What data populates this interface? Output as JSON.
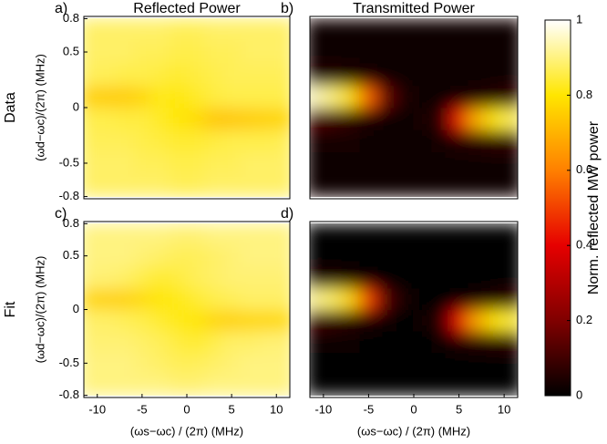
{
  "chart_data": [
    {
      "type": "heatmap",
      "label": "a)",
      "title": "Reflected Power",
      "row_label": "Data",
      "ylabel": "(ωd−ωc)/(2π) (MHz)",
      "x": [
        -11,
        -9,
        -7,
        -5,
        -3,
        -1,
        1,
        3,
        5,
        7,
        9,
        11
      ],
      "y": [
        -0.7,
        -0.5,
        -0.3,
        -0.1,
        0.1,
        0.3,
        0.5,
        0.7
      ],
      "z": [
        [
          0.88,
          0.88,
          0.88,
          0.88,
          0.88,
          0.87,
          0.87,
          0.88,
          0.88,
          0.88,
          0.88,
          0.88
        ],
        [
          0.88,
          0.88,
          0.88,
          0.87,
          0.87,
          0.86,
          0.86,
          0.87,
          0.87,
          0.88,
          0.88,
          0.88
        ],
        [
          0.87,
          0.87,
          0.87,
          0.86,
          0.85,
          0.84,
          0.84,
          0.85,
          0.86,
          0.86,
          0.86,
          0.87
        ],
        [
          0.86,
          0.86,
          0.85,
          0.85,
          0.83,
          0.8,
          0.78,
          0.74,
          0.74,
          0.75,
          0.76,
          0.77
        ],
        [
          0.76,
          0.75,
          0.75,
          0.77,
          0.82,
          0.81,
          0.83,
          0.85,
          0.86,
          0.86,
          0.86,
          0.86
        ],
        [
          0.87,
          0.87,
          0.86,
          0.86,
          0.85,
          0.84,
          0.85,
          0.86,
          0.87,
          0.87,
          0.87,
          0.87
        ],
        [
          0.88,
          0.88,
          0.88,
          0.87,
          0.87,
          0.86,
          0.86,
          0.87,
          0.87,
          0.88,
          0.88,
          0.88
        ],
        [
          0.88,
          0.88,
          0.88,
          0.88,
          0.88,
          0.87,
          0.87,
          0.88,
          0.88,
          0.88,
          0.88,
          0.88
        ]
      ],
      "xlim": [
        -11.5,
        11.5
      ],
      "ylim": [
        -0.82,
        0.82
      ],
      "yticks": [
        0.8,
        0.5,
        0,
        -0.5,
        -0.8
      ]
    },
    {
      "type": "heatmap",
      "label": "b)",
      "title": "Transmitted Power",
      "x": [
        -11,
        -9,
        -7,
        -5,
        -3,
        -1,
        1,
        3,
        5,
        7,
        9,
        11
      ],
      "y": [
        -0.7,
        -0.5,
        -0.3,
        -0.1,
        0.1,
        0.3,
        0.5,
        0.7
      ],
      "z": [
        [
          0.02,
          0.02,
          0.02,
          0.02,
          0.02,
          0.02,
          0.02,
          0.02,
          0.02,
          0.02,
          0.02,
          0.02
        ],
        [
          0.02,
          0.02,
          0.02,
          0.02,
          0.02,
          0.02,
          0.02,
          0.02,
          0.02,
          0.02,
          0.02,
          0.02
        ],
        [
          0.03,
          0.03,
          0.03,
          0.02,
          0.02,
          0.02,
          0.02,
          0.03,
          0.05,
          0.06,
          0.07,
          0.08
        ],
        [
          0.12,
          0.1,
          0.07,
          0.04,
          0.02,
          0.02,
          0.03,
          0.08,
          0.45,
          0.7,
          0.82,
          0.88
        ],
        [
          0.95,
          0.9,
          0.78,
          0.55,
          0.15,
          0.04,
          0.02,
          0.02,
          0.03,
          0.04,
          0.06,
          0.08
        ],
        [
          0.06,
          0.05,
          0.04,
          0.03,
          0.02,
          0.02,
          0.02,
          0.02,
          0.02,
          0.02,
          0.02,
          0.02
        ],
        [
          0.02,
          0.02,
          0.02,
          0.02,
          0.02,
          0.02,
          0.02,
          0.02,
          0.02,
          0.02,
          0.02,
          0.02
        ],
        [
          0.02,
          0.02,
          0.02,
          0.02,
          0.02,
          0.02,
          0.02,
          0.02,
          0.02,
          0.02,
          0.02,
          0.02
        ]
      ],
      "xlim": [
        -11.5,
        11.5
      ],
      "ylim": [
        -0.82,
        0.82
      ]
    },
    {
      "type": "heatmap",
      "label": "c)",
      "row_label": "Fit",
      "ylabel": "(ωd−ωc)/(2π) (MHz)",
      "xlabel": "(ωs−ωc) / (2π) (MHz)",
      "x": [
        -11,
        -9,
        -7,
        -5,
        -3,
        -1,
        1,
        3,
        5,
        7,
        9,
        11
      ],
      "y": [
        -0.7,
        -0.5,
        -0.3,
        -0.1,
        0.1,
        0.3,
        0.5,
        0.7
      ],
      "z": [
        [
          0.9,
          0.9,
          0.9,
          0.9,
          0.9,
          0.89,
          0.89,
          0.9,
          0.9,
          0.9,
          0.9,
          0.9
        ],
        [
          0.9,
          0.9,
          0.9,
          0.89,
          0.88,
          0.87,
          0.87,
          0.88,
          0.89,
          0.9,
          0.9,
          0.9
        ],
        [
          0.89,
          0.89,
          0.89,
          0.88,
          0.87,
          0.85,
          0.84,
          0.86,
          0.88,
          0.88,
          0.89,
          0.89
        ],
        [
          0.88,
          0.88,
          0.87,
          0.86,
          0.84,
          0.82,
          0.8,
          0.77,
          0.76,
          0.77,
          0.77,
          0.78
        ],
        [
          0.77,
          0.76,
          0.76,
          0.78,
          0.8,
          0.82,
          0.84,
          0.86,
          0.87,
          0.88,
          0.88,
          0.88
        ],
        [
          0.89,
          0.89,
          0.88,
          0.86,
          0.84,
          0.85,
          0.87,
          0.88,
          0.89,
          0.89,
          0.89,
          0.89
        ],
        [
          0.9,
          0.9,
          0.9,
          0.89,
          0.88,
          0.87,
          0.87,
          0.88,
          0.89,
          0.9,
          0.9,
          0.9
        ],
        [
          0.9,
          0.9,
          0.9,
          0.9,
          0.9,
          0.89,
          0.89,
          0.9,
          0.9,
          0.9,
          0.9,
          0.9
        ]
      ],
      "xlim": [
        -11.5,
        11.5
      ],
      "ylim": [
        -0.82,
        0.82
      ],
      "xticks": [
        -10,
        -5,
        0,
        5,
        10
      ],
      "yticks": [
        0.8,
        0.5,
        0,
        -0.5,
        -0.8
      ]
    },
    {
      "type": "heatmap",
      "label": "d)",
      "xlabel": "(ωs−ωc) / (2π) (MHz)",
      "x": [
        -11,
        -9,
        -7,
        -5,
        -3,
        -1,
        1,
        3,
        5,
        7,
        9,
        11
      ],
      "y": [
        -0.7,
        -0.5,
        -0.3,
        -0.1,
        0.1,
        0.3,
        0.5,
        0.7
      ],
      "z": [
        [
          0.01,
          0.01,
          0.01,
          0.01,
          0.01,
          0.01,
          0.01,
          0.01,
          0.01,
          0.01,
          0.01,
          0.01
        ],
        [
          0.01,
          0.01,
          0.01,
          0.01,
          0.01,
          0.01,
          0.01,
          0.01,
          0.01,
          0.01,
          0.01,
          0.01
        ],
        [
          0.02,
          0.02,
          0.02,
          0.01,
          0.01,
          0.01,
          0.01,
          0.02,
          0.04,
          0.05,
          0.06,
          0.07
        ],
        [
          0.1,
          0.08,
          0.06,
          0.04,
          0.02,
          0.01,
          0.02,
          0.07,
          0.42,
          0.68,
          0.8,
          0.86
        ],
        [
          0.92,
          0.88,
          0.76,
          0.5,
          0.12,
          0.03,
          0.01,
          0.01,
          0.02,
          0.03,
          0.05,
          0.07
        ],
        [
          0.05,
          0.04,
          0.03,
          0.02,
          0.01,
          0.01,
          0.01,
          0.01,
          0.01,
          0.01,
          0.01,
          0.01
        ],
        [
          0.01,
          0.01,
          0.01,
          0.01,
          0.01,
          0.01,
          0.01,
          0.01,
          0.01,
          0.01,
          0.01,
          0.01
        ],
        [
          0.01,
          0.01,
          0.01,
          0.01,
          0.01,
          0.01,
          0.01,
          0.01,
          0.01,
          0.01,
          0.01,
          0.01
        ]
      ],
      "xlim": [
        -11.5,
        11.5
      ],
      "ylim": [
        -0.82,
        0.82
      ],
      "xticks": [
        -10,
        -5,
        0,
        5,
        10
      ]
    }
  ],
  "colorbar": {
    "label": "Norm. reflected MW power",
    "ylim": [
      0,
      1
    ],
    "yticks": [
      0,
      0.2,
      0.4,
      0.6,
      0.8,
      1
    ],
    "colormap": [
      "#000000",
      "#800000",
      "#e60000",
      "#ff8000",
      "#ffe600",
      "#ffffff"
    ]
  }
}
